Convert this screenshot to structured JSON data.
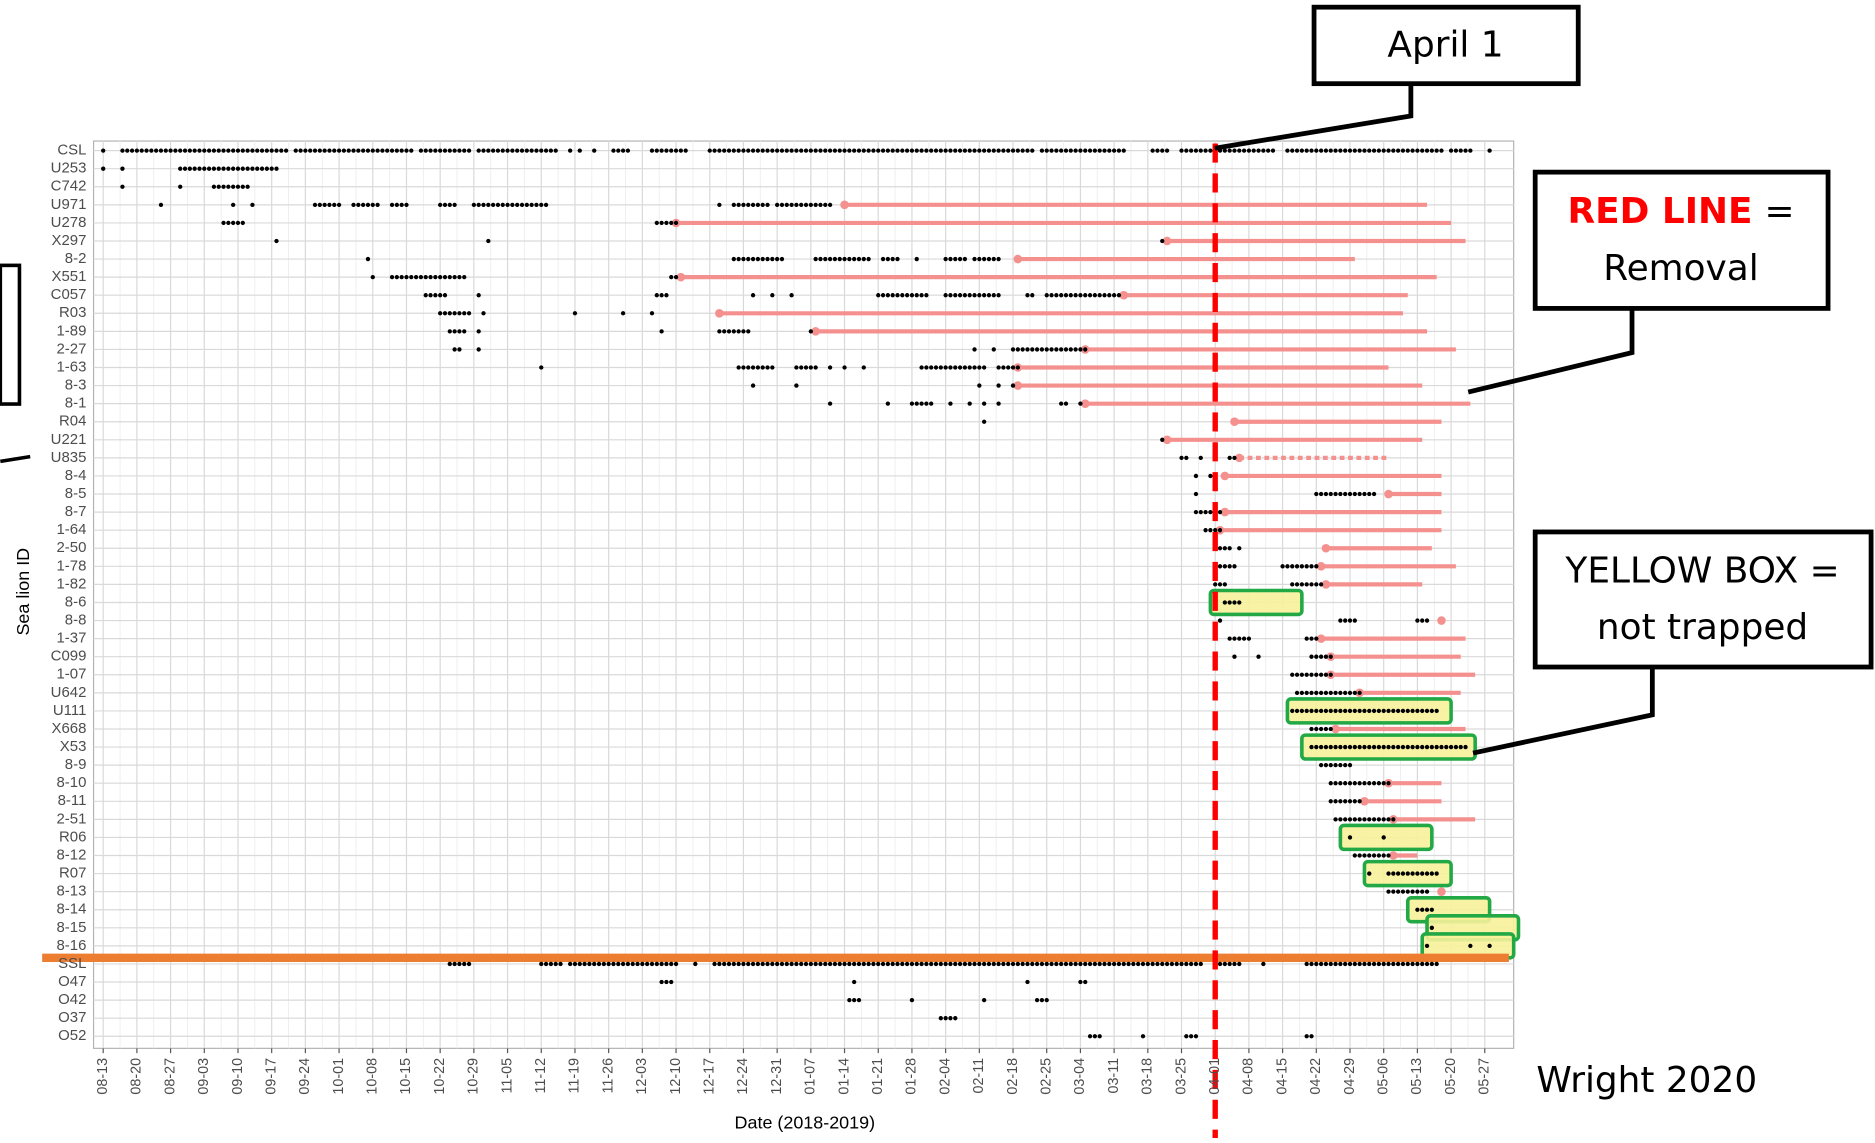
{
  "chart_data": {
    "type": "timeline",
    "y_label": "Sea lion ID",
    "x_label": "Date (2018-2019)",
    "xlim": [
      -2,
      293
    ],
    "xticks": [
      {
        "value": 0,
        "label": "08-13"
      },
      {
        "value": 7,
        "label": "08-20"
      },
      {
        "value": 14,
        "label": "08-27"
      },
      {
        "value": 21,
        "label": "09-03"
      },
      {
        "value": 28,
        "label": "09-10"
      },
      {
        "value": 35,
        "label": "09-17"
      },
      {
        "value": 42,
        "label": "09-24"
      },
      {
        "value": 49,
        "label": "10-01"
      },
      {
        "value": 56,
        "label": "10-08"
      },
      {
        "value": 63,
        "label": "10-15"
      },
      {
        "value": 70,
        "label": "10-22"
      },
      {
        "value": 77,
        "label": "10-29"
      },
      {
        "value": 84,
        "label": "11-05"
      },
      {
        "value": 91,
        "label": "11-12"
      },
      {
        "value": 98,
        "label": "11-19"
      },
      {
        "value": 105,
        "label": "11-26"
      },
      {
        "value": 112,
        "label": "12-03"
      },
      {
        "value": 119,
        "label": "12-10"
      },
      {
        "value": 126,
        "label": "12-17"
      },
      {
        "value": 133,
        "label": "12-24"
      },
      {
        "value": 140,
        "label": "12-31"
      },
      {
        "value": 147,
        "label": "01-07"
      },
      {
        "value": 154,
        "label": "01-14"
      },
      {
        "value": 161,
        "label": "01-21"
      },
      {
        "value": 168,
        "label": "01-28"
      },
      {
        "value": 175,
        "label": "02-04"
      },
      {
        "value": 182,
        "label": "02-11"
      },
      {
        "value": 189,
        "label": "02-18"
      },
      {
        "value": 196,
        "label": "02-25"
      },
      {
        "value": 203,
        "label": "03-04"
      },
      {
        "value": 210,
        "label": "03-11"
      },
      {
        "value": 217,
        "label": "03-18"
      },
      {
        "value": 224,
        "label": "03-25"
      },
      {
        "value": 231,
        "label": "04-01"
      },
      {
        "value": 238,
        "label": "04-08"
      },
      {
        "value": 245,
        "label": "04-15"
      },
      {
        "value": 252,
        "label": "04-22"
      },
      {
        "value": 259,
        "label": "04-29"
      },
      {
        "value": 266,
        "label": "05-06"
      },
      {
        "value": 273,
        "label": "05-13"
      },
      {
        "value": 280,
        "label": "05-20"
      },
      {
        "value": 287,
        "label": "05-27"
      }
    ],
    "grid": true,
    "dot_color": "#000000",
    "removal_color": "#f4918f",
    "box_fill": "#f7f29a",
    "box_stroke": "#22a845",
    "divider_color": "#ed7d31",
    "april1_color": "#ff0000",
    "april1_day": 231,
    "divider_after": "8-16",
    "rows": [
      {
        "name": "CSL",
        "runs": [
          [
            0,
            0
          ],
          [
            4,
            38
          ],
          [
            40,
            64
          ],
          [
            66,
            76
          ],
          [
            78,
            94
          ],
          [
            97,
            97
          ],
          [
            99,
            99
          ],
          [
            102,
            102
          ],
          [
            106,
            109
          ],
          [
            114,
            121
          ],
          [
            126,
            193
          ],
          [
            195,
            212
          ],
          [
            218,
            221
          ],
          [
            224,
            243
          ],
          [
            246,
            278
          ],
          [
            280,
            284
          ],
          [
            288,
            288
          ]
        ]
      },
      {
        "name": "U253",
        "runs": [
          [
            0,
            0
          ],
          [
            4,
            4
          ],
          [
            16,
            36
          ]
        ]
      },
      {
        "name": "C742",
        "runs": [
          [
            4,
            4
          ],
          [
            16,
            16
          ],
          [
            23,
            30
          ]
        ]
      },
      {
        "name": "U971",
        "runs": [
          [
            12,
            12
          ],
          [
            27,
            27
          ],
          [
            31,
            31
          ],
          [
            44,
            49
          ],
          [
            52,
            57
          ],
          [
            60,
            63
          ],
          [
            70,
            73
          ],
          [
            77,
            92
          ],
          [
            128,
            128
          ],
          [
            131,
            138
          ],
          [
            140,
            144
          ],
          [
            145,
            151
          ]
        ],
        "removal": [
          154,
          275
        ]
      },
      {
        "name": "U278",
        "runs": [
          [
            25,
            29
          ],
          [
            115,
            119
          ]
        ],
        "removal": [
          119,
          280
        ]
      },
      {
        "name": "X297",
        "runs": [
          [
            36,
            36
          ],
          [
            80,
            80
          ],
          [
            220,
            220
          ]
        ],
        "removal": [
          221,
          283
        ]
      },
      {
        "name": "8-2",
        "runs": [
          [
            55,
            55
          ],
          [
            131,
            141
          ],
          [
            148,
            159
          ],
          [
            162,
            165
          ],
          [
            169,
            169
          ],
          [
            175,
            179
          ],
          [
            181,
            186
          ]
        ],
        "removal": [
          190,
          260
        ]
      },
      {
        "name": "X551",
        "runs": [
          [
            56,
            56
          ],
          [
            60,
            75
          ],
          [
            118,
            119
          ]
        ],
        "removal": [
          120,
          277
        ]
      },
      {
        "name": "C057",
        "runs": [
          [
            67,
            71
          ],
          [
            78,
            78
          ],
          [
            115,
            117
          ],
          [
            135,
            135
          ],
          [
            139,
            139
          ],
          [
            143,
            143
          ],
          [
            161,
            171
          ],
          [
            175,
            186
          ],
          [
            192,
            193
          ],
          [
            196,
            201
          ],
          [
            202,
            211
          ]
        ],
        "removal": [
          212,
          271
        ]
      },
      {
        "name": "R03",
        "runs": [
          [
            70,
            76
          ],
          [
            79,
            79
          ],
          [
            98,
            98
          ],
          [
            108,
            108
          ],
          [
            114,
            114
          ]
        ],
        "removal": [
          128,
          270
        ]
      },
      {
        "name": "1-89",
        "runs": [
          [
            72,
            75
          ],
          [
            78,
            78
          ],
          [
            116,
            116
          ],
          [
            128,
            134
          ],
          [
            147,
            147
          ]
        ],
        "removal": [
          148,
          275
        ]
      },
      {
        "name": "2-27",
        "runs": [
          [
            73,
            74
          ],
          [
            78,
            78
          ],
          [
            181,
            181
          ],
          [
            185,
            185
          ],
          [
            189,
            204
          ]
        ],
        "removal": [
          204,
          281
        ]
      },
      {
        "name": "1-63",
        "runs": [
          [
            91,
            91
          ],
          [
            132,
            139
          ],
          [
            144,
            148
          ],
          [
            151,
            151
          ],
          [
            154,
            154
          ],
          [
            158,
            158
          ],
          [
            170,
            183
          ],
          [
            186,
            190
          ]
        ],
        "removal": [
          190,
          267
        ]
      },
      {
        "name": "8-3",
        "runs": [
          [
            135,
            135
          ],
          [
            144,
            144
          ],
          [
            182,
            182
          ],
          [
            186,
            186
          ],
          [
            189,
            189
          ]
        ],
        "removal": [
          190,
          274
        ]
      },
      {
        "name": "8-1",
        "runs": [
          [
            151,
            151
          ],
          [
            163,
            163
          ],
          [
            168,
            172
          ],
          [
            176,
            176
          ],
          [
            180,
            180
          ],
          [
            183,
            183
          ],
          [
            186,
            186
          ],
          [
            199,
            200
          ],
          [
            203,
            203
          ]
        ],
        "removal": [
          204,
          284
        ]
      },
      {
        "name": "R04",
        "runs": [
          [
            183,
            183
          ]
        ],
        "removal": [
          235,
          278
        ]
      },
      {
        "name": "U221",
        "runs": [
          [
            220,
            220
          ]
        ],
        "removal": [
          221,
          274
        ]
      },
      {
        "name": "U835",
        "runs": [
          [
            224,
            225
          ],
          [
            228,
            228
          ],
          [
            231,
            231
          ],
          [
            234,
            235
          ]
        ],
        "removal": [
          236,
          267
        ],
        "removal_style": "dotted"
      },
      {
        "name": "8-4",
        "runs": [
          [
            227,
            227
          ],
          [
            230,
            230
          ]
        ],
        "removal": [
          233,
          278
        ]
      },
      {
        "name": "8-5",
        "runs": [
          [
            227,
            227
          ],
          [
            252,
            264
          ]
        ],
        "removal": [
          267,
          278
        ]
      },
      {
        "name": "8-7",
        "runs": [
          [
            227,
            232
          ]
        ],
        "removal": [
          233,
          278
        ]
      },
      {
        "name": "1-64",
        "runs": [
          [
            229,
            232
          ]
        ],
        "removal": [
          232,
          278
        ]
      },
      {
        "name": "2-50",
        "runs": [
          [
            231,
            234
          ],
          [
            236,
            236
          ]
        ],
        "removal": [
          254,
          276
        ]
      },
      {
        "name": "1-78",
        "runs": [
          [
            231,
            235
          ],
          [
            245,
            252
          ]
        ],
        "removal": [
          253,
          281
        ]
      },
      {
        "name": "1-82",
        "runs": [
          [
            231,
            233
          ],
          [
            247,
            253
          ]
        ],
        "removal": [
          254,
          274
        ]
      },
      {
        "name": "8-6",
        "runs": [
          [
            233,
            236
          ]
        ],
        "not_trapped": [
          230,
          249
        ]
      },
      {
        "name": "8-8",
        "runs": [
          [
            232,
            232
          ],
          [
            257,
            260
          ],
          [
            273,
            275
          ]
        ],
        "removal": [
          278,
          278
        ]
      },
      {
        "name": "1-37",
        "runs": [
          [
            234,
            238
          ],
          [
            250,
            252
          ]
        ],
        "removal": [
          253,
          283
        ]
      },
      {
        "name": "C099",
        "runs": [
          [
            235,
            235
          ],
          [
            240,
            240
          ],
          [
            251,
            255
          ]
        ],
        "removal": [
          255,
          282
        ]
      },
      {
        "name": "1-07",
        "runs": [
          [
            247,
            255
          ]
        ],
        "removal": [
          255,
          285
        ]
      },
      {
        "name": "U642",
        "runs": [
          [
            248,
            261
          ]
        ],
        "removal": [
          261,
          282
        ]
      },
      {
        "name": "U111",
        "runs": [
          [
            247,
            277
          ]
        ],
        "not_trapped": [
          246,
          280
        ]
      },
      {
        "name": "X668",
        "runs": [
          [
            251,
            255
          ]
        ],
        "removal": [
          256,
          283
        ]
      },
      {
        "name": "X53",
        "runs": [
          [
            251,
            283
          ]
        ],
        "not_trapped": [
          249,
          285
        ]
      },
      {
        "name": "8-9",
        "runs": [
          [
            253,
            259
          ]
        ]
      },
      {
        "name": "8-10",
        "runs": [
          [
            255,
            267
          ]
        ],
        "removal": [
          267,
          278
        ]
      },
      {
        "name": "8-11",
        "runs": [
          [
            255,
            261
          ]
        ],
        "removal": [
          262,
          278
        ]
      },
      {
        "name": "2-51",
        "runs": [
          [
            256,
            268
          ]
        ],
        "removal": [
          268,
          285
        ]
      },
      {
        "name": "R06",
        "runs": [
          [
            259,
            259
          ],
          [
            266,
            266
          ]
        ],
        "not_trapped": [
          257,
          276
        ]
      },
      {
        "name": "8-12",
        "runs": [
          [
            260,
            267
          ]
        ],
        "removal": [
          268,
          273
        ]
      },
      {
        "name": "R07",
        "runs": [
          [
            263,
            263
          ],
          [
            267,
            277
          ]
        ],
        "not_trapped": [
          262,
          280
        ]
      },
      {
        "name": "8-13",
        "runs": [
          [
            267,
            275
          ]
        ],
        "removal": [
          278,
          278
        ]
      },
      {
        "name": "8-14",
        "runs": [
          [
            273,
            276
          ]
        ],
        "not_trapped": [
          271,
          288
        ]
      },
      {
        "name": "8-15",
        "runs": [
          [
            276,
            276
          ]
        ],
        "not_trapped": [
          275,
          294
        ]
      },
      {
        "name": "8-16",
        "runs": [
          [
            275,
            275
          ],
          [
            284,
            284
          ],
          [
            288,
            288
          ]
        ],
        "not_trapped": [
          274,
          293
        ]
      },
      {
        "name": "SSL",
        "runs": [
          [
            72,
            76
          ],
          [
            91,
            95
          ],
          [
            97,
            119
          ],
          [
            123,
            123
          ],
          [
            127,
            228
          ],
          [
            232,
            236
          ],
          [
            241,
            241
          ],
          [
            250,
            254
          ],
          [
            255,
            277
          ]
        ]
      },
      {
        "name": "O47",
        "runs": [
          [
            116,
            118
          ],
          [
            156,
            156
          ],
          [
            192,
            192
          ],
          [
            203,
            204
          ]
        ]
      },
      {
        "name": "O42",
        "runs": [
          [
            155,
            157
          ],
          [
            168,
            168
          ],
          [
            183,
            183
          ],
          [
            194,
            196
          ]
        ]
      },
      {
        "name": "O37",
        "runs": [
          [
            174,
            177
          ]
        ]
      },
      {
        "name": "O52",
        "runs": [
          [
            205,
            207
          ],
          [
            216,
            216
          ],
          [
            225,
            227
          ],
          [
            250,
            251
          ]
        ]
      }
    ],
    "annotations": {
      "april": "April 1",
      "red_line": "RED LINE",
      "red_eq": "=",
      "removal": "Removal",
      "yellow": "YELLOW BOX =",
      "not_trapped": "not trapped",
      "credit": "Wright 2020"
    }
  }
}
